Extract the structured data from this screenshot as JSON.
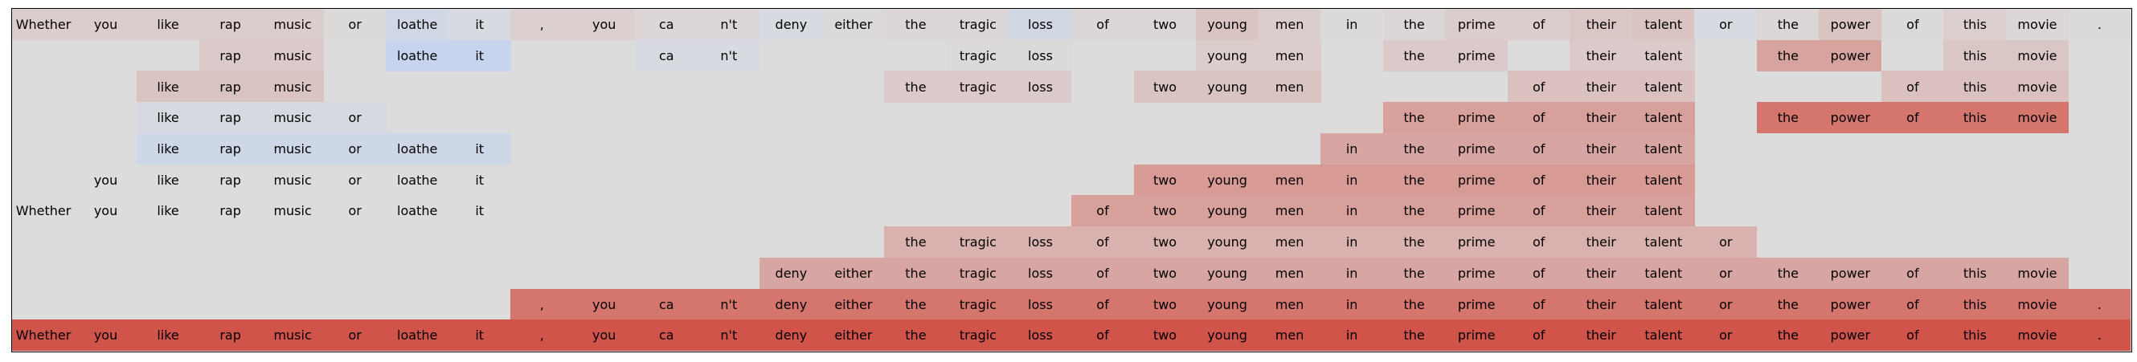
{
  "chart_data": {
    "type": "heatmap",
    "columns": [
      "Whether",
      "you",
      "like",
      "rap",
      "music",
      "or",
      "loathe",
      "it",
      ",",
      "you",
      "ca",
      "n't",
      "deny",
      "either",
      "the",
      "tragic",
      "loss",
      "of",
      "two",
      "young",
      "men",
      "in",
      "the",
      "prime",
      "of",
      "their",
      "talent",
      "or",
      "the",
      "power",
      "of",
      "this",
      "movie",
      "."
    ],
    "rows": [
      {
        "cells": [
          {
            "c": 0,
            "s": 0.1
          },
          {
            "c": 1,
            "s": 0.1
          },
          {
            "c": 2,
            "s": 0.1
          },
          {
            "c": 3,
            "s": 0.1
          },
          {
            "c": 4,
            "s": 0.1
          },
          {
            "c": 5,
            "s": 0.02
          },
          {
            "c": 6,
            "s": -0.3
          },
          {
            "c": 7,
            "s": -0.12
          },
          {
            "c": 8,
            "s": 0.08
          },
          {
            "c": 9,
            "s": 0.08
          },
          {
            "c": 10,
            "s": 0.04
          },
          {
            "c": 11,
            "s": 0.04
          },
          {
            "c": 12,
            "s": -0.12
          },
          {
            "c": 13,
            "s": 0.02
          },
          {
            "c": 14,
            "s": 0.04
          },
          {
            "c": 15,
            "s": 0.04
          },
          {
            "c": 16,
            "s": -0.28
          },
          {
            "c": 17,
            "s": 0.04
          },
          {
            "c": 18,
            "s": 0.04
          },
          {
            "c": 19,
            "s": 0.16
          },
          {
            "c": 20,
            "s": 0.1
          },
          {
            "c": 21,
            "s": 0.02
          },
          {
            "c": 22,
            "s": 0.04
          },
          {
            "c": 23,
            "s": 0.1
          },
          {
            "c": 24,
            "s": 0.1
          },
          {
            "c": 25,
            "s": 0.14
          },
          {
            "c": 26,
            "s": 0.16
          },
          {
            "c": 27,
            "s": -0.12
          },
          {
            "c": 28,
            "s": 0.04
          },
          {
            "c": 29,
            "s": 0.16
          },
          {
            "c": 30,
            "s": 0.02
          },
          {
            "c": 31,
            "s": 0.08
          },
          {
            "c": 32,
            "s": 0.04
          },
          {
            "c": 33,
            "s": 0.02
          }
        ]
      },
      {
        "cells": [
          {
            "c": 3,
            "s": 0.12
          },
          {
            "c": 4,
            "s": 0.12
          },
          {
            "c": 6,
            "s": -0.55
          },
          {
            "c": 7,
            "s": -0.55
          },
          {
            "c": 10,
            "s": -0.12
          },
          {
            "c": 11,
            "s": -0.12
          },
          {
            "c": 15,
            "s": 0.02
          },
          {
            "c": 16,
            "s": 0.02
          },
          {
            "c": 19,
            "s": 0.1
          },
          {
            "c": 20,
            "s": 0.1
          },
          {
            "c": 22,
            "s": 0.12
          },
          {
            "c": 23,
            "s": 0.12
          },
          {
            "c": 25,
            "s": 0.12
          },
          {
            "c": 26,
            "s": 0.12
          },
          {
            "c": 28,
            "s": 0.38
          },
          {
            "c": 29,
            "s": 0.38
          },
          {
            "c": 31,
            "s": 0.14
          },
          {
            "c": 32,
            "s": 0.14
          }
        ]
      },
      {
        "cells": [
          {
            "c": 2,
            "s": 0.16
          },
          {
            "c": 3,
            "s": 0.16
          },
          {
            "c": 4,
            "s": 0.16
          },
          {
            "c": 14,
            "s": 0.12
          },
          {
            "c": 15,
            "s": 0.12
          },
          {
            "c": 16,
            "s": 0.12
          },
          {
            "c": 18,
            "s": 0.16
          },
          {
            "c": 19,
            "s": 0.16
          },
          {
            "c": 20,
            "s": 0.16
          },
          {
            "c": 24,
            "s": 0.18
          },
          {
            "c": 25,
            "s": 0.18
          },
          {
            "c": 26,
            "s": 0.18
          },
          {
            "c": 30,
            "s": 0.18
          },
          {
            "c": 31,
            "s": 0.18
          },
          {
            "c": 32,
            "s": 0.18
          }
        ]
      },
      {
        "cells": [
          {
            "c": 2,
            "s": -0.14
          },
          {
            "c": 3,
            "s": -0.14
          },
          {
            "c": 4,
            "s": -0.14
          },
          {
            "c": 5,
            "s": -0.14
          },
          {
            "c": 22,
            "s": 0.4
          },
          {
            "c": 23,
            "s": 0.4
          },
          {
            "c": 24,
            "s": 0.4
          },
          {
            "c": 25,
            "s": 0.4
          },
          {
            "c": 26,
            "s": 0.4
          },
          {
            "c": 28,
            "s": 0.68
          },
          {
            "c": 29,
            "s": 0.68
          },
          {
            "c": 30,
            "s": 0.68
          },
          {
            "c": 31,
            "s": 0.68
          },
          {
            "c": 32,
            "s": 0.68
          }
        ]
      },
      {
        "cells": [
          {
            "c": 2,
            "s": -0.35
          },
          {
            "c": 3,
            "s": -0.35
          },
          {
            "c": 4,
            "s": -0.35
          },
          {
            "c": 5,
            "s": -0.35
          },
          {
            "c": 6,
            "s": -0.35
          },
          {
            "c": 7,
            "s": -0.35
          },
          {
            "c": 21,
            "s": 0.36
          },
          {
            "c": 22,
            "s": 0.36
          },
          {
            "c": 23,
            "s": 0.36
          },
          {
            "c": 24,
            "s": 0.36
          },
          {
            "c": 25,
            "s": 0.36
          },
          {
            "c": 26,
            "s": 0.36
          }
        ]
      },
      {
        "cells": [
          {
            "c": 1,
            "s": 0.0
          },
          {
            "c": 2,
            "s": 0.0
          },
          {
            "c": 3,
            "s": 0.0
          },
          {
            "c": 4,
            "s": 0.0
          },
          {
            "c": 5,
            "s": 0.0
          },
          {
            "c": 6,
            "s": 0.0
          },
          {
            "c": 7,
            "s": 0.0
          },
          {
            "c": 18,
            "s": 0.44
          },
          {
            "c": 19,
            "s": 0.44
          },
          {
            "c": 20,
            "s": 0.44
          },
          {
            "c": 21,
            "s": 0.44
          },
          {
            "c": 22,
            "s": 0.44
          },
          {
            "c": 23,
            "s": 0.44
          },
          {
            "c": 24,
            "s": 0.44
          },
          {
            "c": 25,
            "s": 0.44
          },
          {
            "c": 26,
            "s": 0.44
          }
        ]
      },
      {
        "cells": [
          {
            "c": 0,
            "s": 0.0
          },
          {
            "c": 1,
            "s": 0.0
          },
          {
            "c": 2,
            "s": 0.0
          },
          {
            "c": 3,
            "s": 0.0
          },
          {
            "c": 4,
            "s": 0.0
          },
          {
            "c": 5,
            "s": 0.0
          },
          {
            "c": 6,
            "s": 0.0
          },
          {
            "c": 7,
            "s": 0.0
          },
          {
            "c": 17,
            "s": 0.4
          },
          {
            "c": 18,
            "s": 0.4
          },
          {
            "c": 19,
            "s": 0.4
          },
          {
            "c": 20,
            "s": 0.4
          },
          {
            "c": 21,
            "s": 0.4
          },
          {
            "c": 22,
            "s": 0.4
          },
          {
            "c": 23,
            "s": 0.4
          },
          {
            "c": 24,
            "s": 0.4
          },
          {
            "c": 25,
            "s": 0.4
          },
          {
            "c": 26,
            "s": 0.4
          }
        ]
      },
      {
        "cells": [
          {
            "c": 14,
            "s": 0.28
          },
          {
            "c": 15,
            "s": 0.28
          },
          {
            "c": 16,
            "s": 0.28
          },
          {
            "c": 17,
            "s": 0.28
          },
          {
            "c": 18,
            "s": 0.28
          },
          {
            "c": 19,
            "s": 0.28
          },
          {
            "c": 20,
            "s": 0.28
          },
          {
            "c": 21,
            "s": 0.28
          },
          {
            "c": 22,
            "s": 0.28
          },
          {
            "c": 23,
            "s": 0.28
          },
          {
            "c": 24,
            "s": 0.28
          },
          {
            "c": 25,
            "s": 0.28
          },
          {
            "c": 26,
            "s": 0.28
          },
          {
            "c": 27,
            "s": 0.28
          }
        ]
      },
      {
        "cells": [
          {
            "c": 12,
            "s": 0.36
          },
          {
            "c": 13,
            "s": 0.36
          },
          {
            "c": 14,
            "s": 0.36
          },
          {
            "c": 15,
            "s": 0.36
          },
          {
            "c": 16,
            "s": 0.36
          },
          {
            "c": 17,
            "s": 0.36
          },
          {
            "c": 18,
            "s": 0.36
          },
          {
            "c": 19,
            "s": 0.36
          },
          {
            "c": 20,
            "s": 0.36
          },
          {
            "c": 21,
            "s": 0.36
          },
          {
            "c": 22,
            "s": 0.36
          },
          {
            "c": 23,
            "s": 0.36
          },
          {
            "c": 24,
            "s": 0.36
          },
          {
            "c": 25,
            "s": 0.36
          },
          {
            "c": 26,
            "s": 0.36
          },
          {
            "c": 27,
            "s": 0.36
          },
          {
            "c": 28,
            "s": 0.36
          },
          {
            "c": 29,
            "s": 0.36
          },
          {
            "c": 30,
            "s": 0.36
          },
          {
            "c": 31,
            "s": 0.36
          },
          {
            "c": 32,
            "s": 0.36
          }
        ]
      },
      {
        "cells": [
          {
            "c": 8,
            "s": 0.68
          },
          {
            "c": 9,
            "s": 0.68
          },
          {
            "c": 10,
            "s": 0.68
          },
          {
            "c": 11,
            "s": 0.68
          },
          {
            "c": 12,
            "s": 0.68
          },
          {
            "c": 13,
            "s": 0.68
          },
          {
            "c": 14,
            "s": 0.68
          },
          {
            "c": 15,
            "s": 0.68
          },
          {
            "c": 16,
            "s": 0.68
          },
          {
            "c": 17,
            "s": 0.68
          },
          {
            "c": 18,
            "s": 0.68
          },
          {
            "c": 19,
            "s": 0.68
          },
          {
            "c": 20,
            "s": 0.68
          },
          {
            "c": 21,
            "s": 0.68
          },
          {
            "c": 22,
            "s": 0.68
          },
          {
            "c": 23,
            "s": 0.68
          },
          {
            "c": 24,
            "s": 0.68
          },
          {
            "c": 25,
            "s": 0.68
          },
          {
            "c": 26,
            "s": 0.68
          },
          {
            "c": 27,
            "s": 0.68
          },
          {
            "c": 28,
            "s": 0.68
          },
          {
            "c": 29,
            "s": 0.68
          },
          {
            "c": 30,
            "s": 0.68
          },
          {
            "c": 31,
            "s": 0.68
          },
          {
            "c": 32,
            "s": 0.68
          },
          {
            "c": 33,
            "s": 0.68
          }
        ]
      },
      {
        "cells": [
          {
            "c": 0,
            "s": 0.9
          },
          {
            "c": 1,
            "s": 0.9
          },
          {
            "c": 2,
            "s": 0.9
          },
          {
            "c": 3,
            "s": 0.9
          },
          {
            "c": 4,
            "s": 0.9
          },
          {
            "c": 5,
            "s": 0.9
          },
          {
            "c": 6,
            "s": 0.9
          },
          {
            "c": 7,
            "s": 0.9
          },
          {
            "c": 8,
            "s": 0.9
          },
          {
            "c": 9,
            "s": 0.9
          },
          {
            "c": 10,
            "s": 0.9
          },
          {
            "c": 11,
            "s": 0.9
          },
          {
            "c": 12,
            "s": 0.9
          },
          {
            "c": 13,
            "s": 0.9
          },
          {
            "c": 14,
            "s": 0.9
          },
          {
            "c": 15,
            "s": 0.9
          },
          {
            "c": 16,
            "s": 0.9
          },
          {
            "c": 17,
            "s": 0.9
          },
          {
            "c": 18,
            "s": 0.9
          },
          {
            "c": 19,
            "s": 0.9
          },
          {
            "c": 20,
            "s": 0.9
          },
          {
            "c": 21,
            "s": 0.9
          },
          {
            "c": 22,
            "s": 0.9
          },
          {
            "c": 23,
            "s": 0.9
          },
          {
            "c": 24,
            "s": 0.9
          },
          {
            "c": 25,
            "s": 0.9
          },
          {
            "c": 26,
            "s": 0.9
          },
          {
            "c": 27,
            "s": 0.9
          },
          {
            "c": 28,
            "s": 0.9
          },
          {
            "c": 29,
            "s": 0.9
          },
          {
            "c": 30,
            "s": 0.9
          },
          {
            "c": 31,
            "s": 0.9
          },
          {
            "c": 32,
            "s": 0.9
          },
          {
            "c": 33,
            "s": 0.9
          }
        ]
      }
    ],
    "colormap": {
      "negative": "#b4cdfa",
      "neutral": "#dcdcdc",
      "positive": "#d0453a"
    },
    "grid": false,
    "legend": "none"
  }
}
